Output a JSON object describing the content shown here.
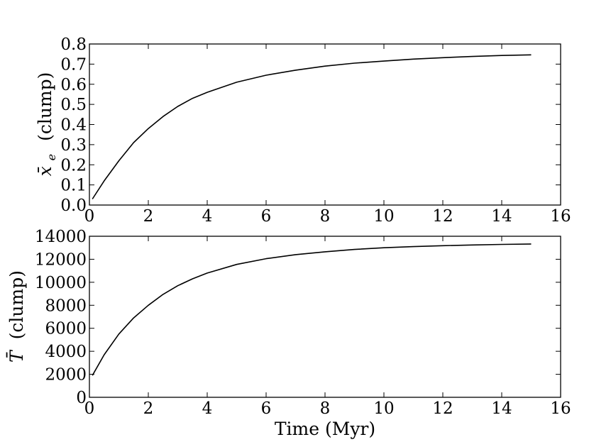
{
  "chart_data": [
    {
      "type": "line",
      "xlim": [
        0,
        16
      ],
      "ylim": [
        0.0,
        0.8
      ],
      "x_ticks": [
        "0",
        "2",
        "4",
        "6",
        "8",
        "10",
        "12",
        "14",
        "16"
      ],
      "y_ticks": [
        "0.0",
        "0.1",
        "0.2",
        "0.3",
        "0.4",
        "0.5",
        "0.6",
        "0.7",
        "0.8"
      ],
      "ylabel_symbol": "x̄",
      "ylabel_subscript": "e",
      "ylabel_text": "(clump)",
      "xlabel": "",
      "grid": false,
      "series": [
        {
          "color": "#000000",
          "x": [
            0.1,
            0.5,
            1,
            1.5,
            2,
            2.5,
            3,
            3.5,
            4,
            5,
            6,
            7,
            8,
            9,
            10,
            11,
            12,
            13,
            14,
            15
          ],
          "y": [
            0.03,
            0.12,
            0.22,
            0.31,
            0.38,
            0.44,
            0.49,
            0.53,
            0.56,
            0.61,
            0.645,
            0.67,
            0.69,
            0.705,
            0.715,
            0.725,
            0.732,
            0.738,
            0.743,
            0.746
          ]
        }
      ]
    },
    {
      "type": "line",
      "xlim": [
        0,
        16
      ],
      "ylim": [
        0,
        14000
      ],
      "x_ticks": [
        "0",
        "2",
        "4",
        "6",
        "8",
        "10",
        "12",
        "14",
        "16"
      ],
      "y_ticks": [
        "0",
        "2000",
        "4000",
        "6000",
        "8000",
        "10000",
        "12000",
        "14000"
      ],
      "ylabel_symbol": "T̄",
      "ylabel_text": "(clump)",
      "xlabel": "Time (Myr)",
      "grid": false,
      "series": [
        {
          "color": "#000000",
          "x": [
            0.1,
            0.5,
            1,
            1.5,
            2,
            2.5,
            3,
            3.5,
            4,
            5,
            6,
            7,
            8,
            9,
            10,
            11,
            12,
            13,
            14,
            15
          ],
          "y": [
            1900,
            3700,
            5500,
            6900,
            8000,
            8950,
            9700,
            10300,
            10800,
            11550,
            12050,
            12400,
            12650,
            12850,
            13000,
            13100,
            13180,
            13240,
            13290,
            13330
          ]
        }
      ]
    }
  ]
}
